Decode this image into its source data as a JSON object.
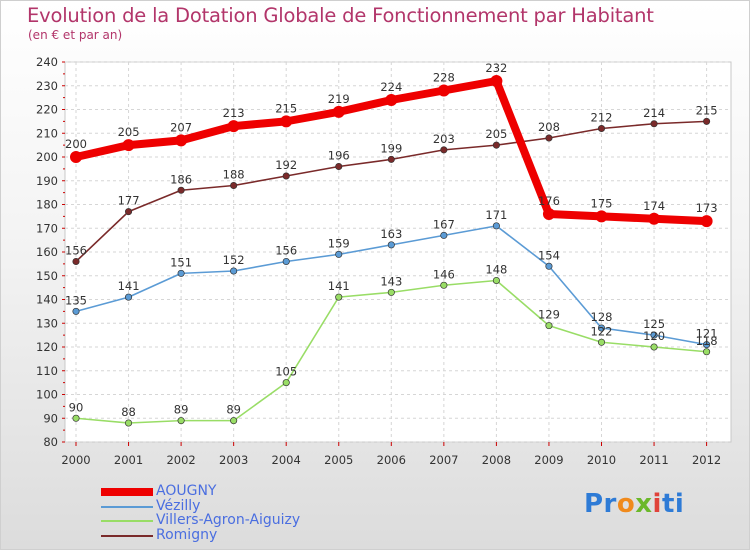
{
  "chart_data": {
    "type": "line",
    "title": "Evolution de la Dotation Globale de Fonctionnement par Habitant",
    "subtitle": "(en € et par an)",
    "xlabel": "",
    "ylabel": "",
    "ylim": [
      80,
      240
    ],
    "yticks": [
      80,
      90,
      100,
      110,
      120,
      130,
      140,
      150,
      160,
      170,
      180,
      190,
      200,
      210,
      220,
      230,
      240
    ],
    "categories": [
      "2000",
      "2001",
      "2002",
      "2003",
      "2004",
      "2005",
      "2006",
      "2007",
      "2008",
      "2009",
      "2010",
      "2011",
      "2012"
    ],
    "series": [
      {
        "name": "AOUGNY",
        "color": "#ee0000",
        "values": [
          200,
          205,
          207,
          213,
          215,
          219,
          224,
          228,
          232,
          176,
          175,
          174,
          173
        ]
      },
      {
        "name": "Vézilly",
        "color": "#5b9bd5",
        "values": [
          135,
          141,
          151,
          152,
          156,
          159,
          163,
          167,
          171,
          154,
          128,
          125,
          121
        ]
      },
      {
        "name": "Villers-Agron-Aiguizy",
        "color": "#99dd66",
        "values": [
          90,
          88,
          89,
          89,
          105,
          141,
          143,
          146,
          148,
          129,
          122,
          120,
          118
        ]
      },
      {
        "name": "Romigny",
        "color": "#7a2a2a",
        "values": [
          156,
          177,
          186,
          188,
          192,
          196,
          199,
          203,
          205,
          208,
          212,
          214,
          215
        ]
      }
    ],
    "legend_position": "bottom-left"
  },
  "logo": {
    "part1": "Pr",
    "part2": "o",
    "part3": "x",
    "part4": "i",
    "part5": "ti"
  }
}
